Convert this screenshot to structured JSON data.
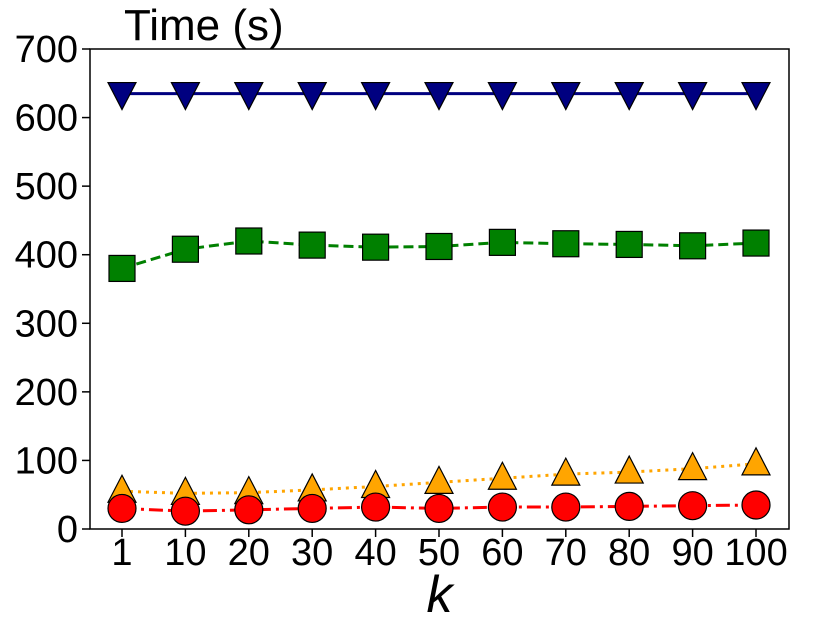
{
  "chart_data": {
    "type": "line",
    "title": "Time (s)",
    "xlabel": "k",
    "ylabel": "",
    "categories": [
      "1",
      "10",
      "20",
      "30",
      "40",
      "50",
      "60",
      "70",
      "80",
      "90",
      "100"
    ],
    "ylim": [
      0,
      700
    ],
    "yticks": [
      "0",
      "100",
      "200",
      "300",
      "400",
      "500",
      "600",
      "700"
    ],
    "grid": false,
    "series": [
      {
        "color": "#000080",
        "marker": "triangle-down",
        "linestyle": "solid",
        "values": [
          635,
          635,
          635,
          635,
          635,
          635,
          635,
          635,
          635,
          635,
          635
        ]
      },
      {
        "color": "#008000",
        "marker": "square",
        "linestyle": "dashed",
        "values": [
          380,
          408,
          420,
          414,
          411,
          412,
          418,
          416,
          415,
          413,
          417
        ]
      },
      {
        "color": "#FFA500",
        "marker": "triangle-up",
        "linestyle": "dotted",
        "values": [
          55,
          52,
          53,
          57,
          62,
          68,
          74,
          80,
          83,
          88,
          95
        ]
      },
      {
        "color": "#FF0000",
        "marker": "circle",
        "linestyle": "dashdot",
        "values": [
          30,
          26,
          28,
          30,
          32,
          30,
          32,
          32,
          33,
          34,
          35
        ]
      }
    ]
  }
}
